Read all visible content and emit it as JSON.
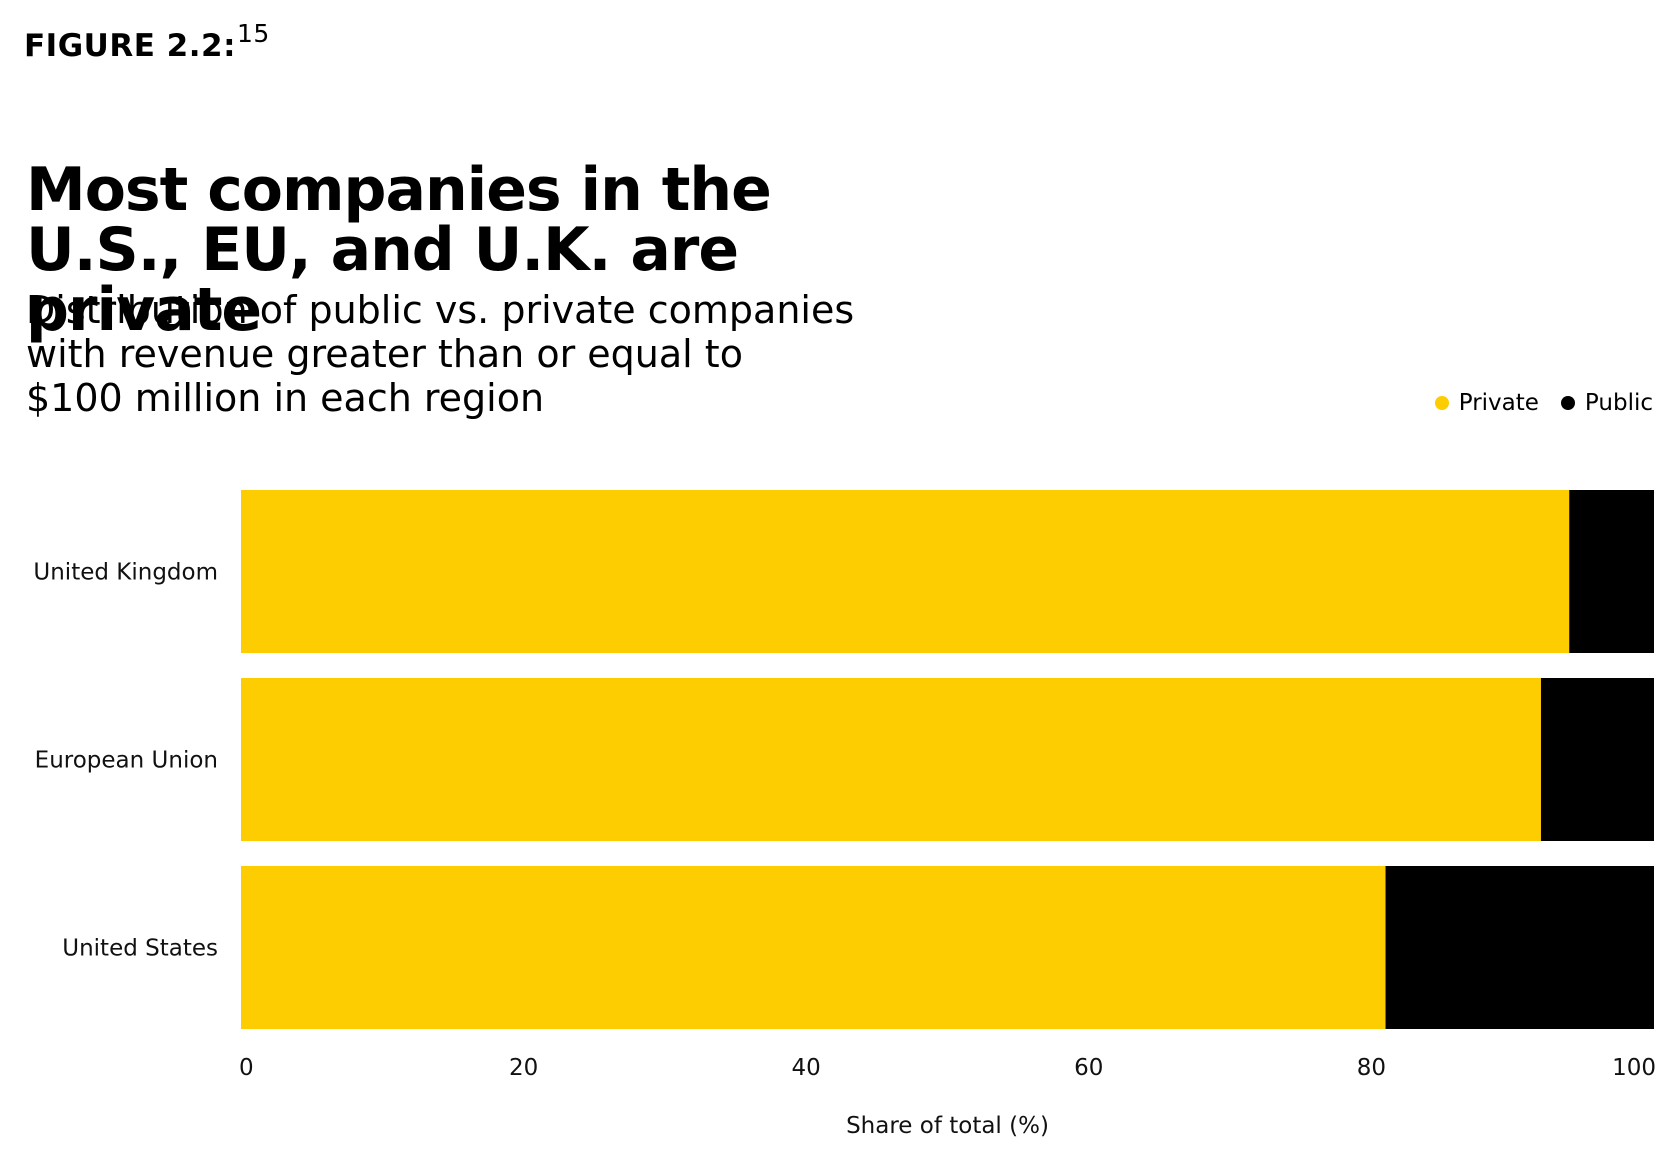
{
  "figure": {
    "label": "FIGURE 2.2",
    "suffix": ":",
    "superscript": "15"
  },
  "colors": {
    "private": "#FDCC01",
    "public": "#000000"
  },
  "chart_data": {
    "type": "bar",
    "orientation": "horizontal",
    "stacked": true,
    "title": "Most companies in the\nU.S., EU, and U.K. are private",
    "subtitle": "Distribution of public vs. private companies\nwith revenue greater than or equal to\n$100 million in each region",
    "categories": [
      "United Kingdom",
      "European Union",
      "United States"
    ],
    "series": [
      {
        "name": "Private",
        "values": [
          94,
          92,
          81
        ],
        "color": "#FDCC01"
      },
      {
        "name": "Public",
        "values": [
          6,
          8,
          19
        ],
        "color": "#000000"
      }
    ],
    "xlabel": "Share of total (%)",
    "ylabel": "",
    "xlim": [
      0,
      100
    ],
    "xticks": [
      0,
      20,
      40,
      60,
      80,
      100
    ],
    "grid": false,
    "legend_position": "top-right"
  }
}
